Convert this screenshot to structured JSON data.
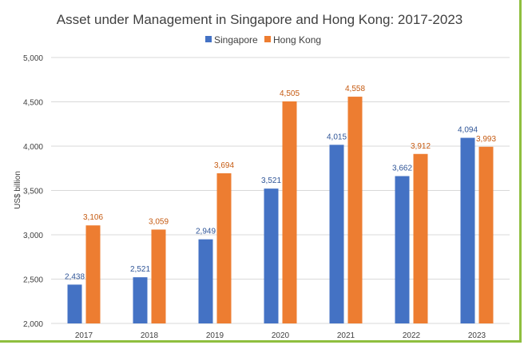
{
  "chart_data": {
    "type": "bar",
    "title": "Asset under Management in Singapore and Hong Kong: 2017-2023",
    "xlabel": "",
    "ylabel": "US$ billion",
    "ylim": [
      2000,
      5000
    ],
    "yticks": [
      2000,
      2500,
      3000,
      3500,
      4000,
      4500,
      5000
    ],
    "ytick_labels": [
      "2,000",
      "2,500",
      "3,000",
      "3,500",
      "4,000",
      "4,500",
      "5,000"
    ],
    "grid": true,
    "legend_position": "top-center",
    "categories": [
      "2017",
      "2018",
      "2019",
      "2020",
      "2021",
      "2022",
      "2023"
    ],
    "series": [
      {
        "name": "Singapore",
        "color": "#4472c4",
        "label_color": "#2f5597",
        "values": [
          2438,
          2521,
          2949,
          3521,
          4015,
          3662,
          4094
        ],
        "labels": [
          "2,438",
          "2,521",
          "2,949",
          "3,521",
          "4,015",
          "3,662",
          "4,094"
        ]
      },
      {
        "name": "Hong Kong",
        "color": "#ed7d31",
        "label_color": "#c55a11",
        "values": [
          3106,
          3059,
          3694,
          4505,
          4558,
          3912,
          3993
        ],
        "labels": [
          "3,106",
          "3,059",
          "3,694",
          "4,505",
          "4,558",
          "3,912",
          "3,993"
        ]
      }
    ]
  }
}
